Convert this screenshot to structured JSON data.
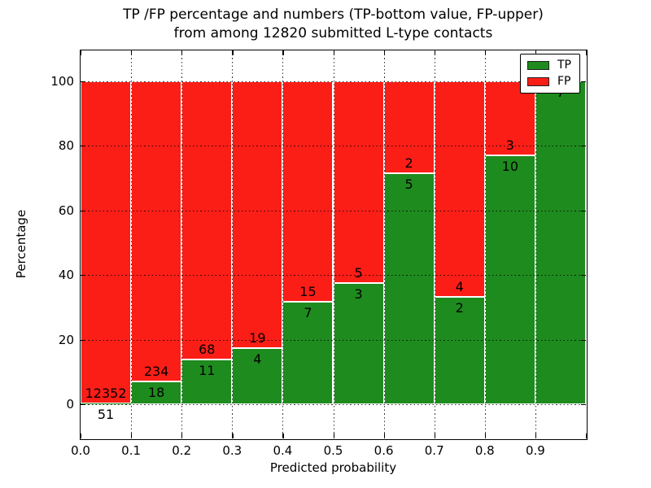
{
  "title": {
    "line1": "TP /FP percentage and numbers (TP-bottom value, FP-upper)",
    "line2": "from among 12820 submitted L-type contacts"
  },
  "axes": {
    "xlabel": "Predicted probability",
    "ylabel": "Percentage",
    "x_tick_labels": [
      "0.0",
      "0.1",
      "0.2",
      "0.3",
      "0.4",
      "0.5",
      "0.6",
      "0.7",
      "0.8",
      "0.9"
    ],
    "y_tick_labels": [
      "0",
      "20",
      "40",
      "60",
      "80",
      "100"
    ],
    "y_tick_values": [
      0,
      20,
      40,
      60,
      80,
      100
    ],
    "grid": true
  },
  "legend": {
    "position": "upper-right",
    "items": [
      {
        "label": "TP",
        "color_key": "tp"
      },
      {
        "label": "FP",
        "color_key": "fp"
      }
    ]
  },
  "colors": {
    "tp": "#1e8b1e",
    "fp": "#fb1e17",
    "grid": "#000000",
    "text": "#000000",
    "background": "#ffffff"
  },
  "chart_data": {
    "type": "bar",
    "stacked": true,
    "normalized_to_percent": true,
    "title": "TP /FP percentage and numbers (TP-bottom value, FP-upper) from among 12820 submitted L-type contacts",
    "xlabel": "Predicted probability",
    "ylabel": "Percentage",
    "total_contacts": 12820,
    "xlim": [
      0,
      1.0
    ],
    "ylim": [
      -10.6,
      109.5
    ],
    "legend_position": "upper right",
    "grid": true,
    "bar_width": 0.1,
    "bins": [
      {
        "bin": "0.0-0.1",
        "x_start": 0.0,
        "tp": 51,
        "fp": 12352,
        "tp_percent": 0.41
      },
      {
        "bin": "0.1-0.2",
        "x_start": 0.1,
        "tp": 18,
        "fp": 234,
        "tp_percent": 7.14
      },
      {
        "bin": "0.2-0.3",
        "x_start": 0.2,
        "tp": 11,
        "fp": 68,
        "tp_percent": 13.92
      },
      {
        "bin": "0.3-0.4",
        "x_start": 0.3,
        "tp": 4,
        "fp": 19,
        "tp_percent": 17.39
      },
      {
        "bin": "0.4-0.5",
        "x_start": 0.4,
        "tp": 7,
        "fp": 15,
        "tp_percent": 31.82
      },
      {
        "bin": "0.5-0.6",
        "x_start": 0.5,
        "tp": 3,
        "fp": 5,
        "tp_percent": 37.5
      },
      {
        "bin": "0.6-0.7",
        "x_start": 0.6,
        "tp": 5,
        "fp": 2,
        "tp_percent": 71.43
      },
      {
        "bin": "0.7-0.8",
        "x_start": 0.7,
        "tp": 2,
        "fp": 4,
        "tp_percent": 33.33
      },
      {
        "bin": "0.8-0.9",
        "x_start": 0.8,
        "tp": 10,
        "fp": 3,
        "tp_percent": 76.92
      },
      {
        "bin": "0.9-1.0",
        "x_start": 0.9,
        "tp": 7,
        "fp": 0,
        "tp_percent": 100
      }
    ],
    "series": [
      {
        "name": "TP",
        "values": [
          51,
          18,
          11,
          4,
          7,
          3,
          5,
          2,
          10,
          7
        ]
      },
      {
        "name": "FP",
        "values": [
          12352,
          234,
          68,
          19,
          15,
          5,
          2,
          4,
          3,
          0
        ]
      }
    ]
  }
}
